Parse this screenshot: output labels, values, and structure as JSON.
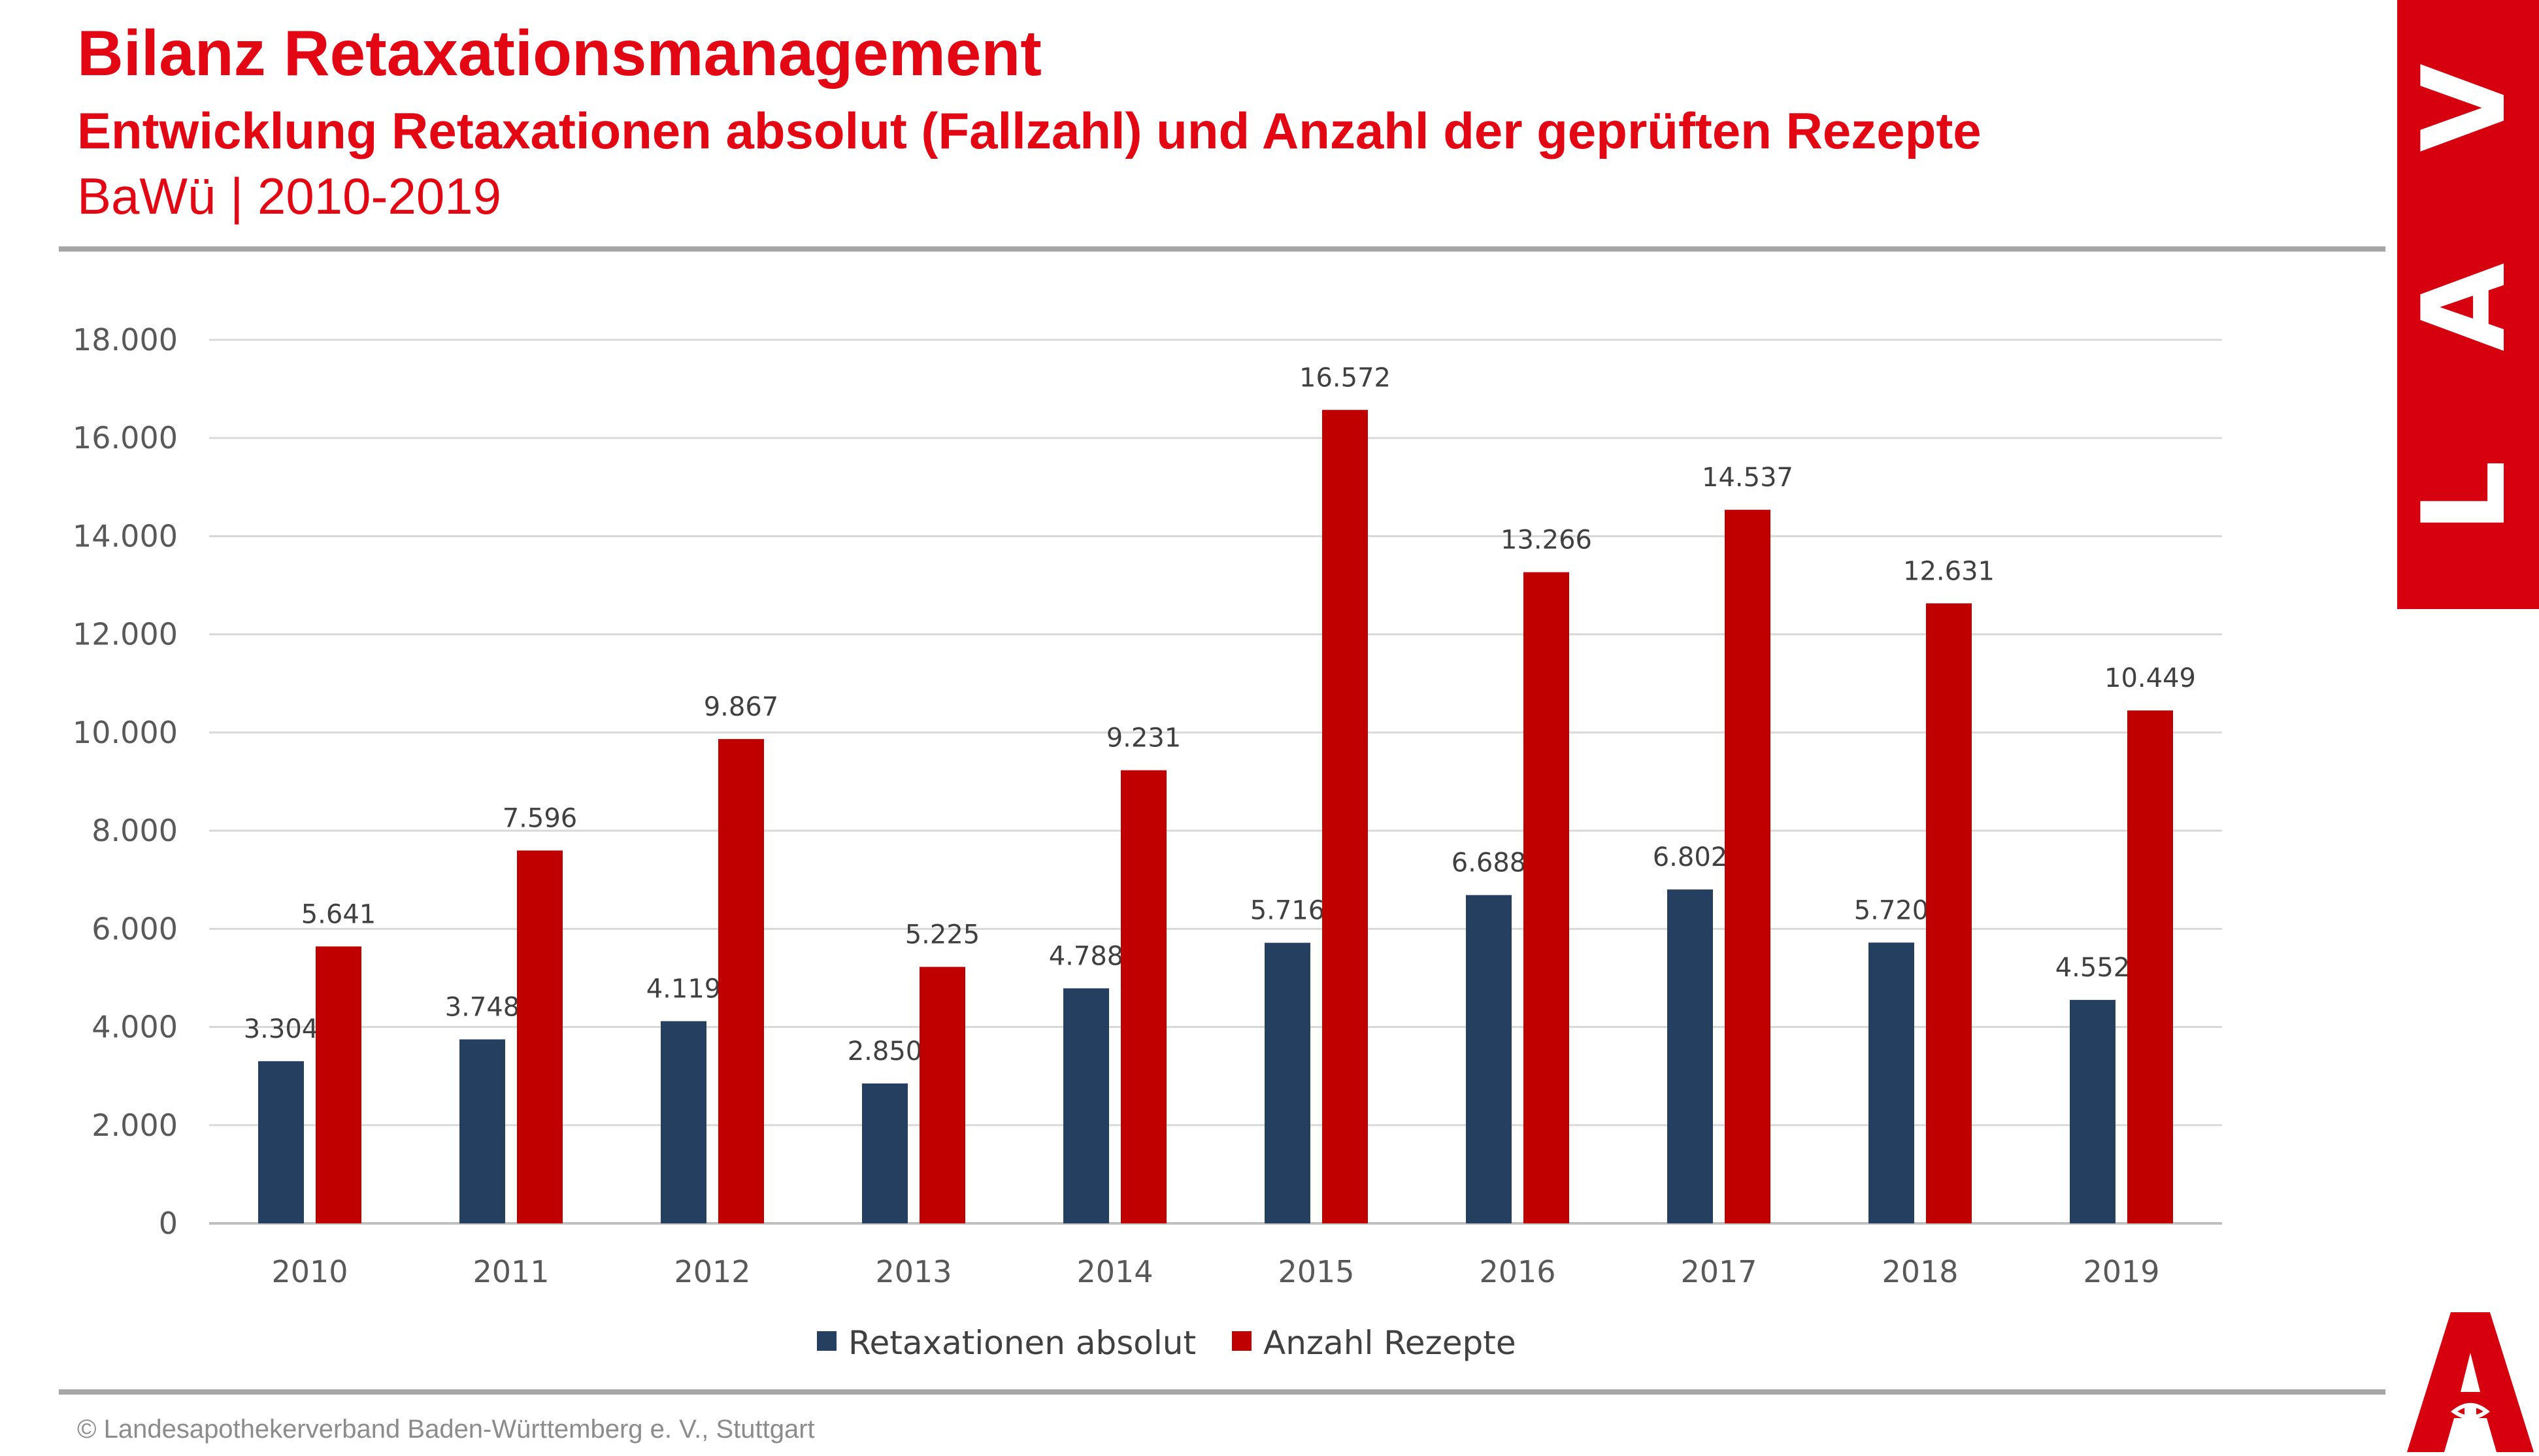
{
  "header": {
    "title": "Bilanz Retaxationsmanagement",
    "subtitle": "Entwicklung Retaxationen absolut (Fallzahl) und Anzahl der geprüften Rezepte",
    "region": "BaWü | 2010-2019"
  },
  "brand": {
    "letters": [
      "L",
      "A",
      "V"
    ],
    "color": "#d7000f"
  },
  "footer": {
    "text": "© Landesapothekerverband Baden-Württemberg e. V., Stuttgart"
  },
  "icons": {
    "apotheke_logo": "apotheke-a-logo"
  },
  "chart_data": {
    "type": "bar",
    "categories": [
      "2010",
      "2011",
      "2012",
      "2013",
      "2014",
      "2015",
      "2016",
      "2017",
      "2018",
      "2019"
    ],
    "series": [
      {
        "name": "Retaxationen absolut",
        "color": "#243f60",
        "values": [
          3304,
          3748,
          4119,
          2850,
          4788,
          5716,
          6688,
          6802,
          5720,
          4552
        ],
        "labels": [
          "3.304",
          "3.748",
          "4.119",
          "2.850",
          "4.788",
          "5.716",
          "6.688",
          "6.802",
          "5.720",
          "4.552"
        ]
      },
      {
        "name": "Anzahl Rezepte",
        "color": "#c00000",
        "values": [
          5641,
          7596,
          9867,
          5225,
          9231,
          16572,
          13266,
          14537,
          12631,
          10449
        ],
        "labels": [
          "5.641",
          "7.596",
          "9.867",
          "5.225",
          "9.231",
          "16.572",
          "13.266",
          "14.537",
          "12.631",
          "10.449"
        ]
      }
    ],
    "ylim": [
      0,
      18000
    ],
    "yticks": [
      0,
      2000,
      4000,
      6000,
      8000,
      10000,
      12000,
      14000,
      16000,
      18000
    ],
    "ytick_labels": [
      "0",
      "2.000",
      "4.000",
      "6.000",
      "8.000",
      "10.000",
      "12.000",
      "14.000",
      "16.000",
      "18.000"
    ],
    "grid": true,
    "legend_position": "bottom-center"
  }
}
